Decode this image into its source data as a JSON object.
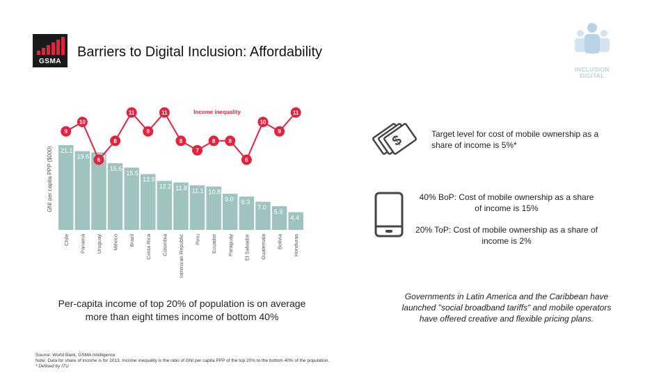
{
  "header": {
    "logo_text": "GSMA",
    "title": "Barriers to Digital Inclusion: Affordability",
    "badge_text_line1": "INCLUSION",
    "badge_text_line2": "DIGITAL"
  },
  "colors": {
    "bar": "#9fc4c0",
    "inequality": "#e5223d",
    "logo_red": "#e5223d",
    "badge": "#b9d3e6"
  },
  "chart_data": {
    "type": "bar",
    "ylabel": "GNI per capita PPP ($000)",
    "categories": [
      "Chile",
      "Panamá",
      "Uruguay",
      "México",
      "Brazil",
      "Costa Rica",
      "Colombia",
      "Dominican Republic",
      "Peru",
      "Ecuador",
      "Paraguay",
      "El Salvador",
      "Guatemala",
      "Bolivia",
      "Honduras"
    ],
    "series": [
      {
        "name": "",
        "values": [
          21.1,
          19.6,
          19.3,
          16.6,
          15.5,
          13.9,
          12.2,
          11.8,
          11.1,
          10.8,
          9.0,
          8.3,
          7.0,
          5.9,
          4.4
        ]
      },
      {
        "name": "Income inequality",
        "values": [
          9,
          10,
          6,
          8,
          11,
          9,
          11,
          8,
          7,
          8,
          8,
          6,
          10,
          9,
          11
        ]
      }
    ],
    "ylim": [
      0,
      23
    ],
    "legend": "top-center"
  },
  "left_caption": "Per-capita income of top 20% of population is on average more than eight times income of bottom 40%",
  "footnotes": {
    "source": "Source: World Bank, GSMA Intelligence",
    "note": "Note: Data for share of income is for 2013. Income inequality is the ratio of GNI per capita PPP of the top 20% to the bottom 40% of the population.",
    "defined": "* Defined by ITU"
  },
  "icons": {
    "money": "money-icon",
    "phone": "mobile-phone-icon",
    "badge": "people-group-icon"
  },
  "info": {
    "target": "Target level for cost of mobile ownership as a share of income is 5%*",
    "bop": "40% BoP: Cost of mobile ownership as a share of income is 15%",
    "top": "20% ToP: Cost of mobile ownership as a share of income is 2%"
  },
  "right_caption": "Governments in Latin America and the Caribbean have launched \"social broadband tariffs\" and mobile operators have offered creative and flexible pricing plans."
}
